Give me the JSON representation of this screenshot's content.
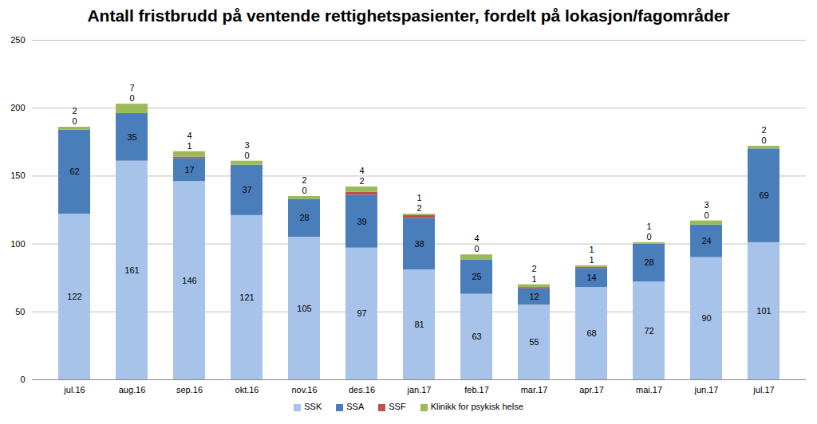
{
  "chart_data": {
    "type": "bar",
    "stacked": true,
    "data_labels": true,
    "grid": true,
    "legend": "bottom",
    "title": "Antall fristbrudd på ventende rettighetspasienter, fordelt på lokasjon/fagområder",
    "categories": [
      "jul.16",
      "aug.16",
      "sep.16",
      "okt.16",
      "nov.16",
      "des.16",
      "jan.17",
      "feb.17",
      "mar.17",
      "apr.17",
      "mai.17",
      "jun.17",
      "jul.17"
    ],
    "series": [
      {
        "name": "SSK",
        "color": "#a7c3ea",
        "values": [
          122,
          161,
          146,
          121,
          105,
          97,
          81,
          63,
          55,
          68,
          72,
          90,
          101
        ]
      },
      {
        "name": "SSA",
        "color": "#4a7ebb",
        "values": [
          62,
          35,
          17,
          37,
          28,
          39,
          38,
          25,
          12,
          14,
          28,
          24,
          69
        ]
      },
      {
        "name": "SSF",
        "color": "#c0504d",
        "values": [
          0,
          0,
          1,
          0,
          0,
          2,
          2,
          0,
          1,
          1,
          0,
          0,
          0
        ]
      },
      {
        "name": "Klinikk for psykisk helse",
        "color": "#9bbb59",
        "values": [
          2,
          7,
          4,
          3,
          2,
          4,
          1,
          4,
          2,
          1,
          1,
          3,
          2
        ]
      }
    ],
    "ylim": [
      0,
      250
    ],
    "yticks": [
      0,
      50,
      100,
      150,
      200,
      250
    ]
  }
}
